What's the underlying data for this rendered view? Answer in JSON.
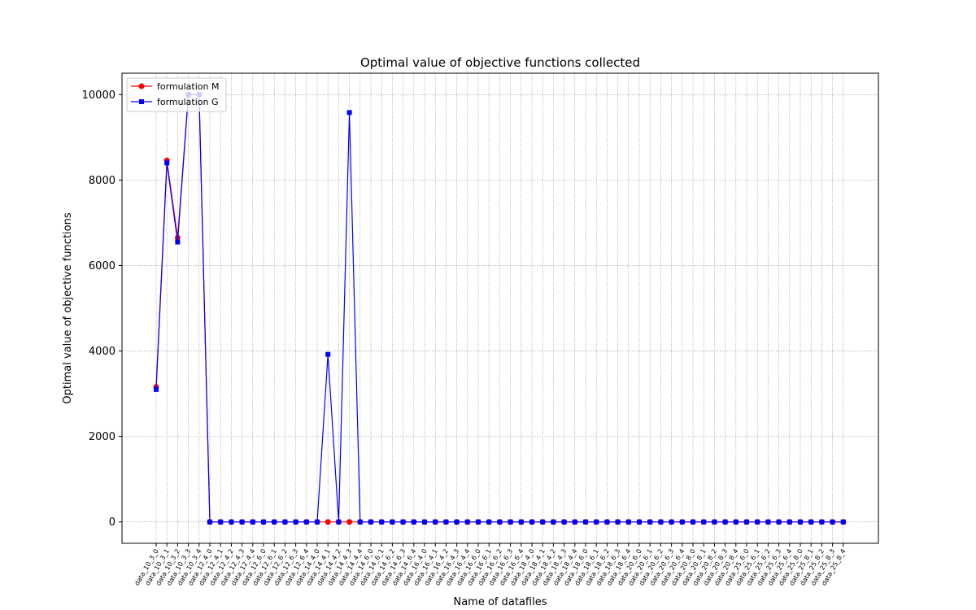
{
  "chart_data": {
    "type": "line",
    "title": "Optimal value of objective functions collected",
    "xlabel": "Name of datafiles",
    "ylabel": "Optimal value of objective functions",
    "ylim": [
      -500,
      10500
    ],
    "yticks": [
      0,
      2000,
      4000,
      6000,
      8000,
      10000
    ],
    "grid": true,
    "legend_position": "top-left",
    "categories": [
      "data_10_3_0",
      "data_10_3_1",
      "data_10_3_2",
      "data_10_3_3",
      "data_10_3_4",
      "data_12_4_0",
      "data_12_4_1",
      "data_12_4_2",
      "data_12_4_3",
      "data_12_4_4",
      "data_12_6_0",
      "data_12_6_1",
      "data_12_6_2",
      "data_12_6_3",
      "data_12_6_4",
      "data_14_4_0",
      "data_14_4_1",
      "data_14_4_2",
      "data_14_4_3",
      "data_14_4_4",
      "data_14_6_0",
      "data_14_6_1",
      "data_14_6_2",
      "data_14_6_3",
      "data_14_6_4",
      "data_16_4_0",
      "data_16_4_1",
      "data_16_4_2",
      "data_16_4_3",
      "data_16_4_4",
      "data_16_6_0",
      "data_16_6_1",
      "data_16_6_2",
      "data_16_6_3",
      "data_16_6_4",
      "data_18_4_0",
      "data_18_4_1",
      "data_18_4_2",
      "data_18_4_3",
      "data_18_4_4",
      "data_18_6_0",
      "data_18_6_1",
      "data_18_6_2",
      "data_18_6_3",
      "data_18_6_4",
      "data_20_6_0",
      "data_20_6_1",
      "data_20_6_2",
      "data_20_6_3",
      "data_20_6_4",
      "data_20_8_0",
      "data_20_8_1",
      "data_20_8_2",
      "data_20_8_3",
      "data_20_8_4",
      "data_25_6_0",
      "data_25_6_1",
      "data_25_6_2",
      "data_25_6_3",
      "data_25_6_4",
      "data_25_8_0",
      "data_25_8_1",
      "data_25_8_2",
      "data_25_8_3",
      "data_25_8_4"
    ],
    "series": [
      {
        "name": "formulation M",
        "color": "#ff0000",
        "marker": "circle",
        "values": [
          3160,
          8460,
          6650,
          10000,
          10000,
          0,
          0,
          0,
          0,
          0,
          0,
          0,
          0,
          0,
          0,
          0,
          0,
          0,
          0,
          0,
          0,
          0,
          0,
          0,
          0,
          0,
          0,
          0,
          0,
          0,
          0,
          0,
          0,
          0,
          0,
          0,
          0,
          0,
          0,
          0,
          0,
          0,
          0,
          0,
          0,
          0,
          0,
          0,
          0,
          0,
          0,
          0,
          0,
          0,
          0,
          0,
          0,
          0,
          0,
          0,
          0,
          0,
          0,
          0,
          0
        ]
      },
      {
        "name": "formulation G",
        "color": "#0000ff",
        "marker": "square",
        "values": [
          3100,
          8400,
          6550,
          10000,
          10000,
          0,
          0,
          0,
          0,
          0,
          0,
          0,
          0,
          0,
          0,
          0,
          3920,
          0,
          9580,
          0,
          0,
          0,
          0,
          0,
          0,
          0,
          0,
          0,
          0,
          0,
          0,
          0,
          0,
          0,
          0,
          0,
          0,
          0,
          0,
          0,
          0,
          0,
          0,
          0,
          0,
          0,
          0,
          0,
          0,
          0,
          0,
          0,
          0,
          0,
          0,
          0,
          0,
          0,
          0,
          0,
          0,
          0,
          0,
          0,
          0
        ]
      }
    ]
  }
}
